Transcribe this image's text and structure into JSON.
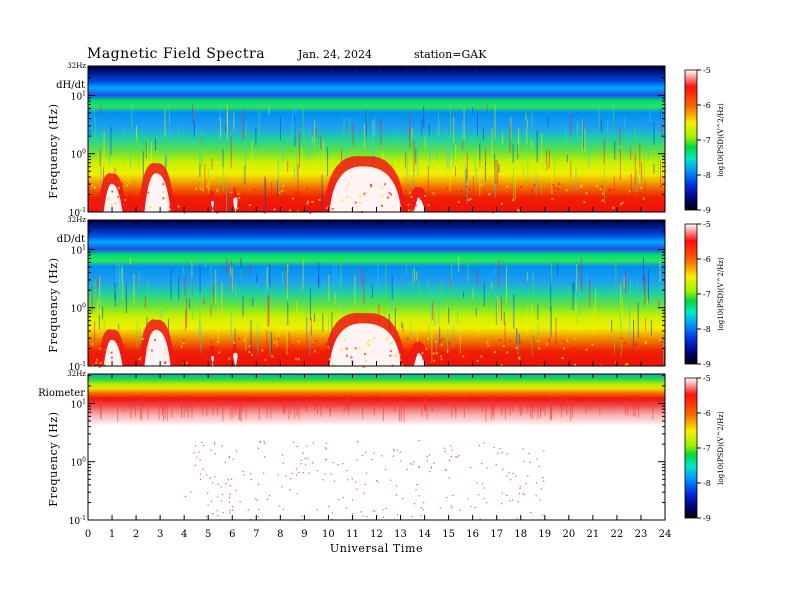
{
  "header": {
    "title": "Magnetic  Field  Spectra",
    "date": "Jan. 24, 2024",
    "station": "station=GAK"
  },
  "chart_data": [
    {
      "type": "heatmap",
      "panel_label": "dH/dt",
      "ylabel": "Frequency (Hz)",
      "ytick_labels": [
        "32Hz",
        "10^1",
        "10^0",
        "10^-1"
      ],
      "ylim": [
        0.1,
        32
      ],
      "yscale": "log",
      "xlim": [
        0,
        24
      ],
      "colorbar_label": "log10(PSD)(V^2/Hz)",
      "colorbar_ticks": [
        -5,
        -6,
        -7,
        -8,
        -9
      ],
      "colorbar_range": [
        -9,
        -5
      ]
    },
    {
      "type": "heatmap",
      "panel_label": "dD/dt",
      "ylabel": "Frequency (Hz)",
      "ytick_labels": [
        "32Hz",
        "10^1",
        "10^0",
        "10^-1"
      ],
      "ylim": [
        0.1,
        32
      ],
      "yscale": "log",
      "xlim": [
        0,
        24
      ],
      "colorbar_label": "log10(PSD)(V^2/Hz)",
      "colorbar_ticks": [
        -5,
        -6,
        -7,
        -8,
        -9
      ],
      "colorbar_range": [
        -9,
        -5
      ]
    },
    {
      "type": "heatmap",
      "panel_label": "Riometer",
      "ylabel": "Frequency (Hz)",
      "ytick_labels": [
        "32Hz",
        "10^1",
        "10^0",
        "10^-1"
      ],
      "ylim": [
        0.1,
        32
      ],
      "yscale": "log",
      "xlim": [
        0,
        24
      ],
      "xlabel": "Universal Time",
      "xticks": [
        0,
        1,
        2,
        3,
        4,
        5,
        6,
        7,
        8,
        9,
        10,
        11,
        12,
        13,
        14,
        15,
        16,
        17,
        18,
        19,
        20,
        21,
        22,
        23,
        24
      ],
      "colorbar_label": "log10(PSD)(V^2/Hz)",
      "colorbar_ticks": [
        -5,
        -6,
        -7,
        -8,
        -9
      ],
      "colorbar_range": [
        -9,
        -5
      ]
    }
  ]
}
